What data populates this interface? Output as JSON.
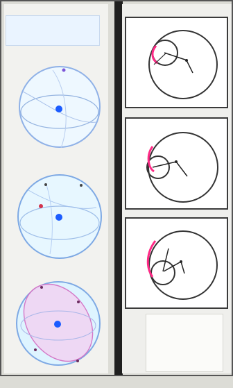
{
  "page": {
    "background": "#dcdcd6",
    "left_panel_bg": "#f2f2ef",
    "right_panel_bg": "#efefec"
  },
  "header_note": {
    "text": "",
    "color": "#9ab8de"
  },
  "left_globes": [
    {
      "name": "globe-top",
      "accent": "#6e8fcf",
      "fill": "#e6f2ff",
      "dot": "#1b5cff"
    },
    {
      "name": "globe-middle",
      "accent": "#6e8fcf",
      "fill": "#d9f0ff",
      "dot": "#1b5cff",
      "marker": "#d3344d"
    },
    {
      "name": "globe-bottom",
      "accent": "#d46bc2",
      "fill": "#efe4ff",
      "dot": "#1b5cff"
    }
  ],
  "right_cards": [
    {
      "name": "card-top",
      "accent": "#ff2a86"
    },
    {
      "name": "card-middle",
      "accent": "#ff2a86"
    },
    {
      "name": "card-bottom",
      "accent": "#ff2a86"
    }
  ],
  "note_box": {
    "text": ""
  }
}
